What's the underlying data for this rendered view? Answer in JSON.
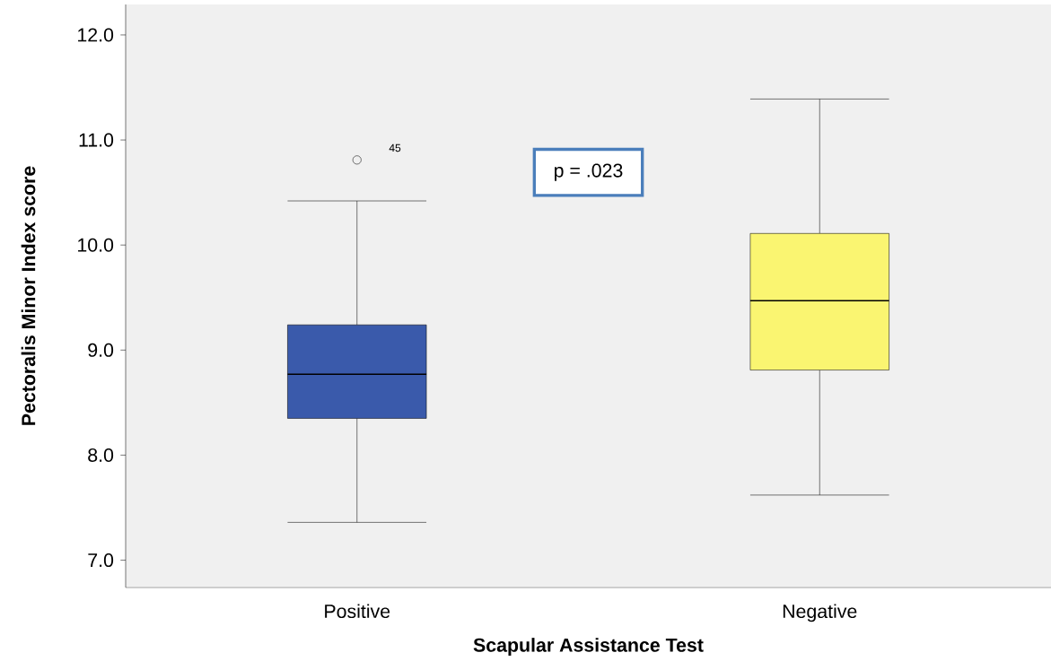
{
  "chart_data": {
    "type": "box",
    "xlabel": "Scapular Assistance Test",
    "ylabel": "Pectoralis Minor Index score",
    "categories": [
      "Positive",
      "Negative"
    ],
    "boxes": [
      {
        "low": 7.36,
        "q1": 8.35,
        "median": 8.77,
        "q3": 9.24,
        "high": 10.42,
        "outliers": [
          10.81
        ]
      },
      {
        "low": 7.62,
        "q1": 8.81,
        "median": 9.47,
        "q3": 10.11,
        "high": 11.39
      }
    ],
    "colors": [
      "#3a5aab",
      "#faf571"
    ],
    "ylim": [
      6.74,
      12.29
    ],
    "yticks": [
      {
        "value": 7,
        "label": "7.0"
      },
      {
        "value": 8,
        "label": "8.0"
      },
      {
        "value": 9,
        "label": "9.0"
      },
      {
        "value": 10,
        "label": "10.0"
      },
      {
        "value": 11,
        "label": "11.0"
      },
      {
        "value": 12,
        "label": "12.0"
      }
    ],
    "annotations": [
      "45",
      "p = .023"
    ]
  }
}
